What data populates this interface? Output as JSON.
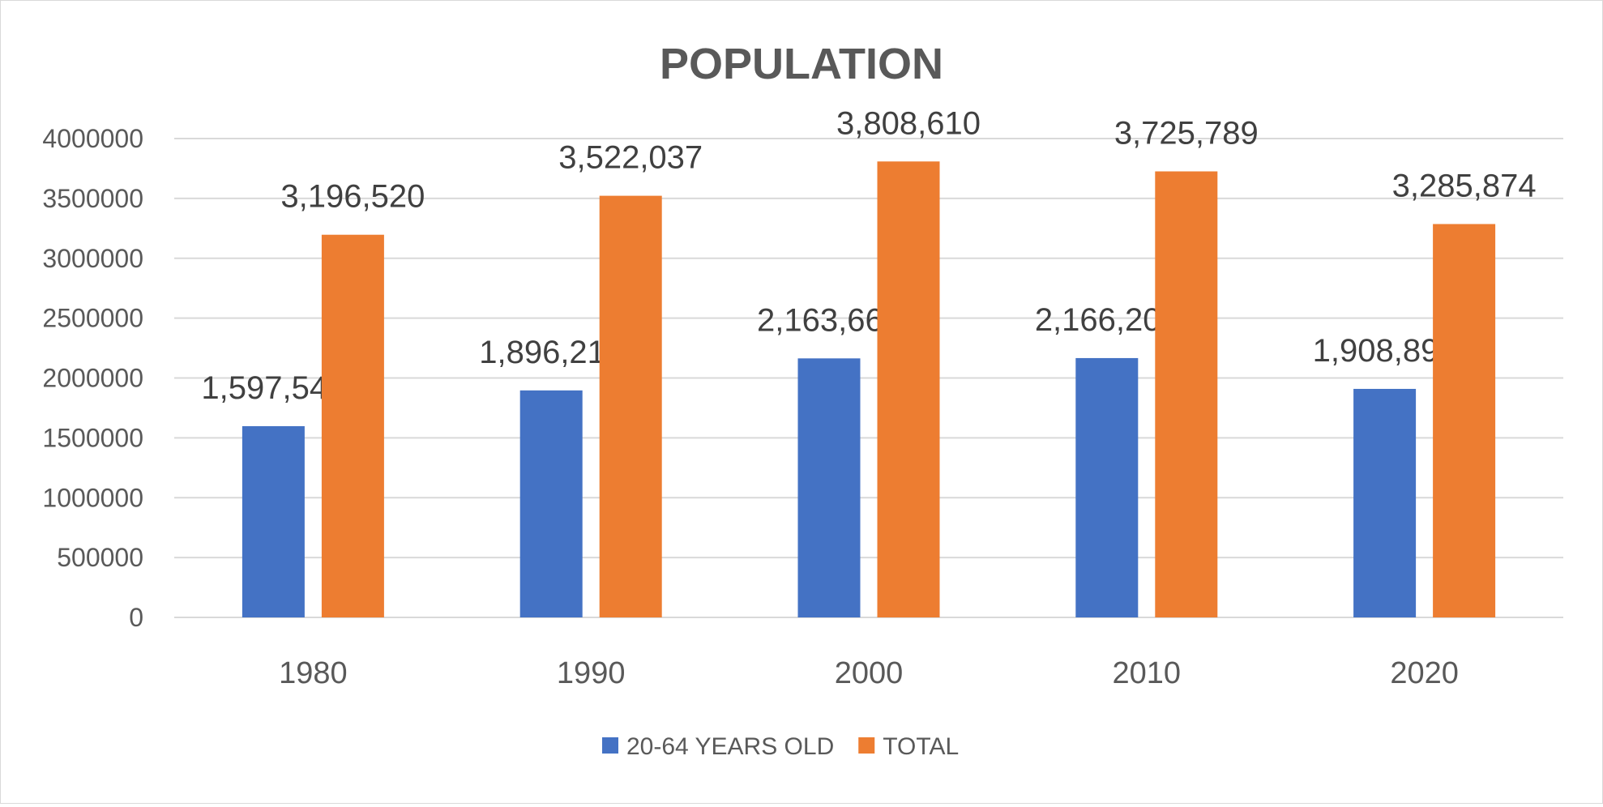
{
  "chart_data": {
    "type": "bar",
    "title": "POPULATION",
    "categories": [
      "1980",
      "1990",
      "2000",
      "2010",
      "2020"
    ],
    "series": [
      {
        "name": "20-64 YEARS OLD",
        "color": "#4472C4",
        "values": [
          1597543,
          1896217,
          2163669,
          2166201,
          1908898
        ],
        "labels": [
          "1,597,543",
          "1,896,217",
          "2,163,669",
          "2,166,201",
          "1,908,898"
        ]
      },
      {
        "name": "TOTAL",
        "color": "#ED7D31",
        "values": [
          3196520,
          3522037,
          3808610,
          3725789,
          3285874
        ],
        "labels": [
          "3,196,520",
          "3,522,037",
          "3,808,610",
          "3,725,789",
          "3,285,874"
        ]
      }
    ],
    "yticks": [
      "0",
      "500000",
      "1000000",
      "1500000",
      "2000000",
      "2500000",
      "3000000",
      "3500000",
      "4000000"
    ],
    "ylim": [
      0,
      4000000
    ],
    "xlabel": "",
    "ylabel": "",
    "grid": true,
    "legend": "bottom"
  }
}
